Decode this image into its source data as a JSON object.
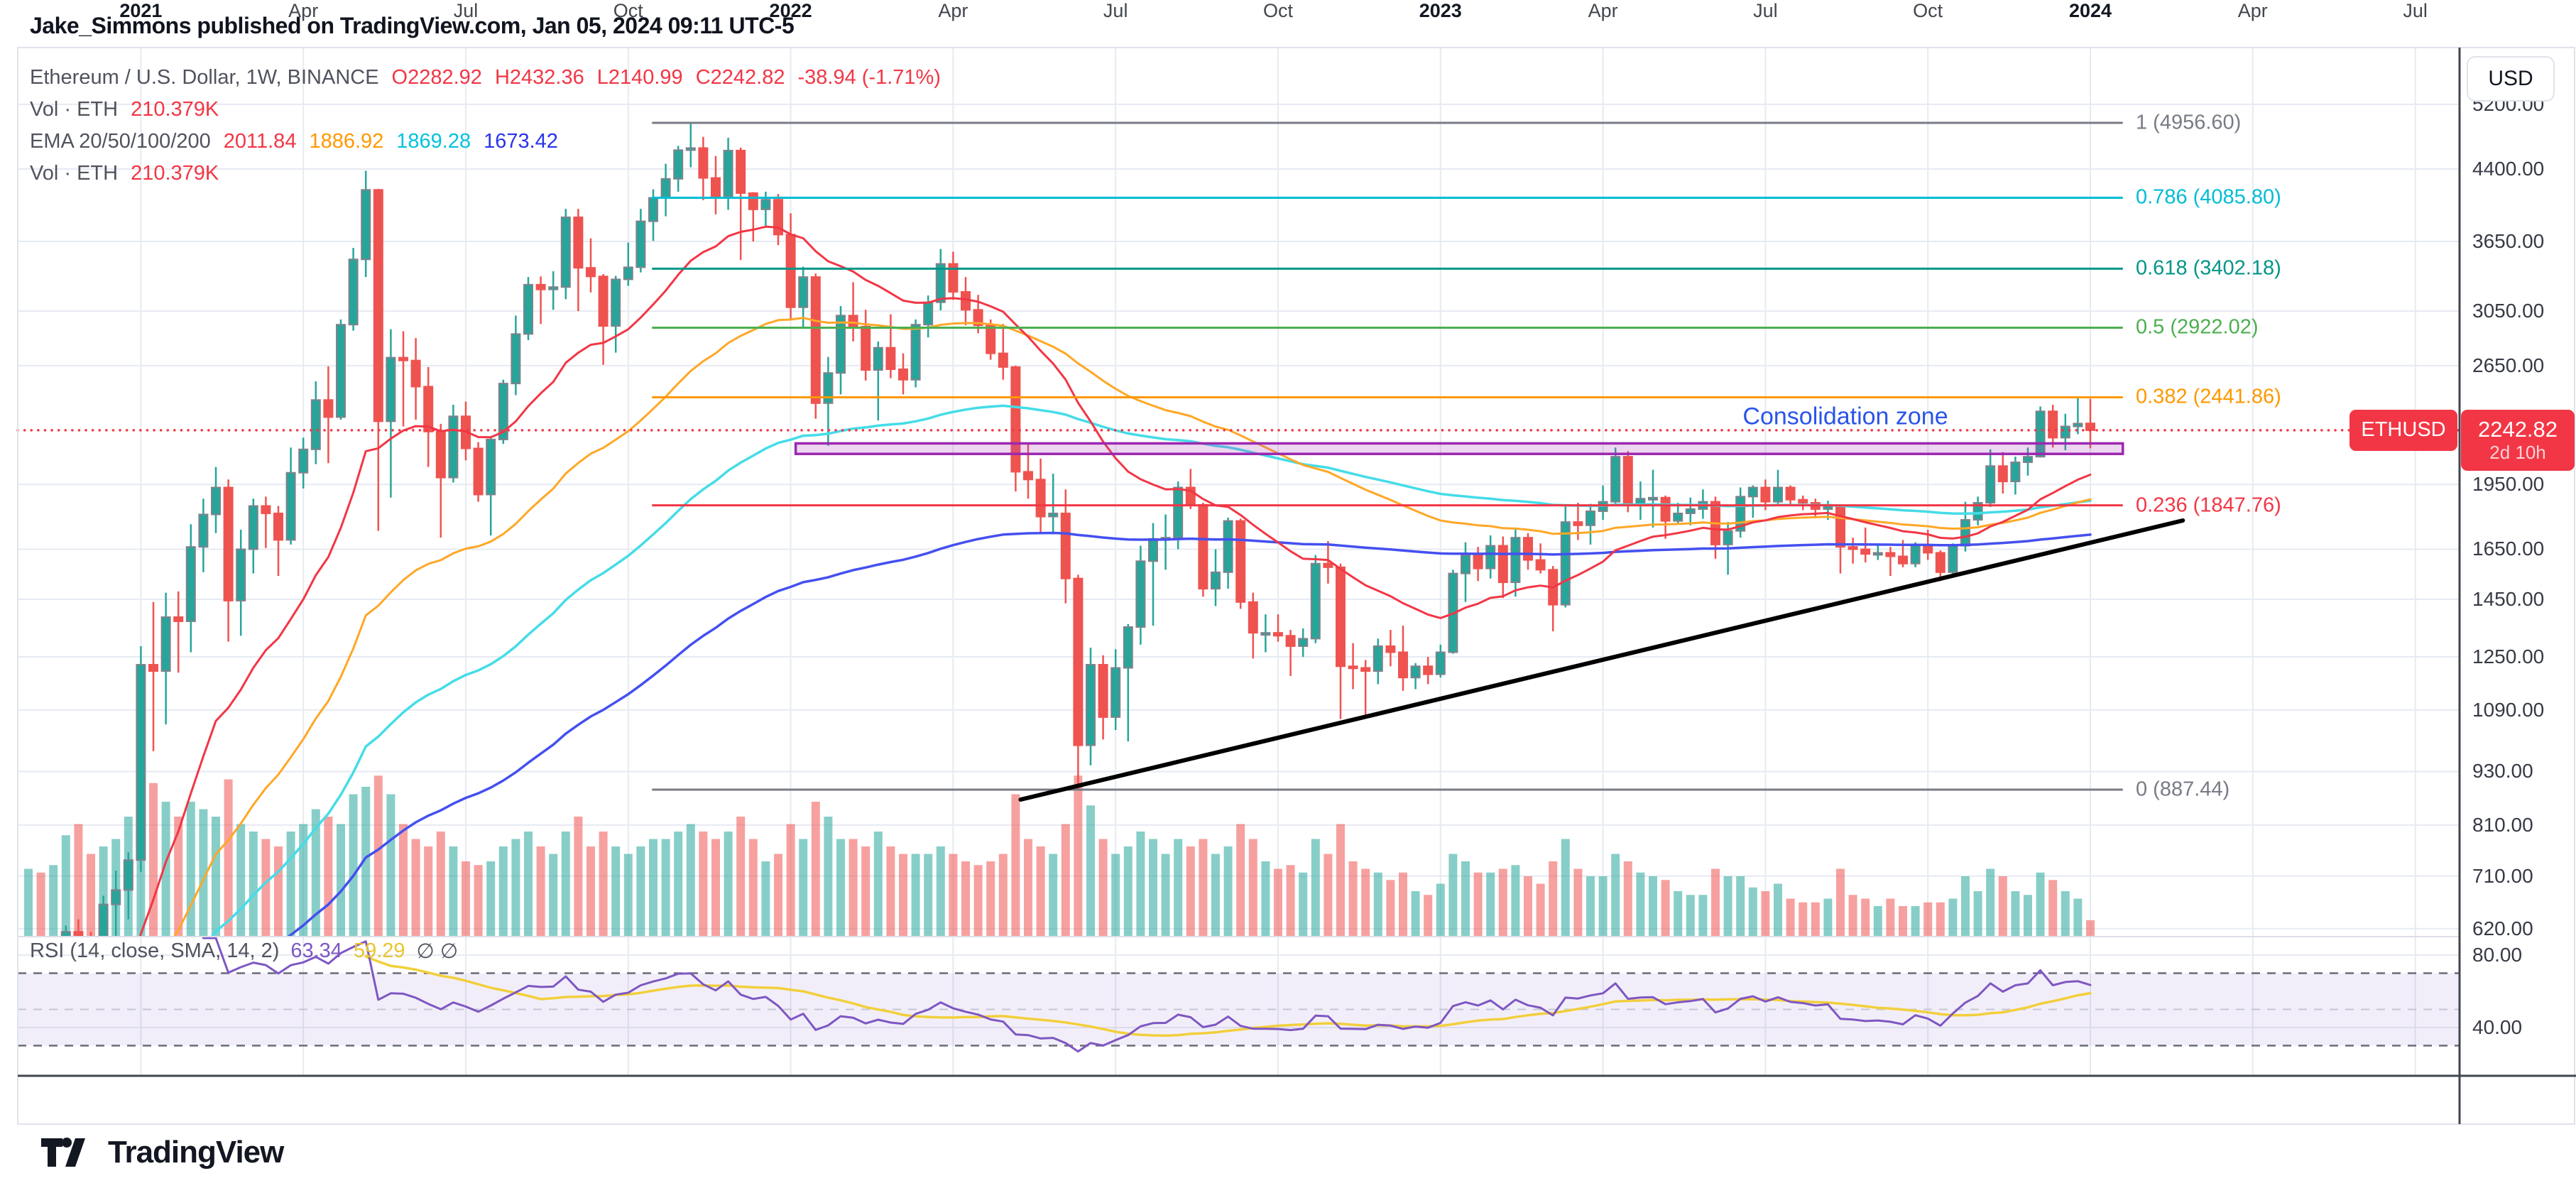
{
  "header": {
    "attribution": "Jake_Simmons published on TradingView.com, Jan 05, 2024 09:11 UTC-5"
  },
  "footer": {
    "brand": "TradingView"
  },
  "legend": {
    "symbol_row": {
      "title": "Ethereum / U.S. Dollar, 1W, BINANCE",
      "o": "O2282.92",
      "h": "H2432.36",
      "l": "L2140.99",
      "c": "C2242.82",
      "change": "-38.94 (-1.71%)"
    },
    "vol_row": {
      "label": "Vol · ETH",
      "value": "210.379K"
    },
    "ema_row": {
      "label": "EMA 20/50/100/200",
      "v20": "2011.84",
      "v50": "1886.92",
      "v100": "1869.28",
      "v200": "1673.42"
    }
  },
  "rsi_legend": {
    "title": "RSI (14, close, SMA, 14, 2)",
    "value": "63.34",
    "ma_value": "59.29",
    "empty": "∅  ∅"
  },
  "price_scale": {
    "title": "USD",
    "labels": [
      {
        "text": "5200.00",
        "value": 5200
      },
      {
        "text": "4400.00",
        "value": 4400
      },
      {
        "text": "3650.00",
        "value": 3650
      },
      {
        "text": "3050.00",
        "value": 3050
      },
      {
        "text": "2650.00",
        "value": 2650
      },
      {
        "text": "1950.00",
        "value": 1950
      },
      {
        "text": "1650.00",
        "value": 1650
      },
      {
        "text": "1450.00",
        "value": 1450
      },
      {
        "text": "1250.00",
        "value": 1250
      },
      {
        "text": "1090.00",
        "value": 1090
      },
      {
        "text": "930.00",
        "value": 930
      },
      {
        "text": "810.00",
        "value": 810
      },
      {
        "text": "710.00",
        "value": 710
      },
      {
        "text": "620.00",
        "value": 620
      }
    ],
    "rsi_labels": [
      {
        "text": "80.00",
        "value": 80
      },
      {
        "text": "40.00",
        "value": 40
      }
    ]
  },
  "time_axis": [
    {
      "text": "2021",
      "week": 9,
      "year": true
    },
    {
      "text": "Apr",
      "week": 22
    },
    {
      "text": "Jul",
      "week": 35
    },
    {
      "text": "Oct",
      "week": 48
    },
    {
      "text": "2022",
      "week": 61,
      "year": true
    },
    {
      "text": "Apr",
      "week": 74
    },
    {
      "text": "Jul",
      "week": 87
    },
    {
      "text": "Oct",
      "week": 100
    },
    {
      "text": "2023",
      "week": 113,
      "year": true
    },
    {
      "text": "Apr",
      "week": 126
    },
    {
      "text": "Jul",
      "week": 139
    },
    {
      "text": "Oct",
      "week": 152
    },
    {
      "text": "2024",
      "week": 165,
      "year": true
    },
    {
      "text": "Apr",
      "week": 178
    },
    {
      "text": "Jul",
      "week": 191
    }
  ],
  "price_tag": {
    "symbol": "ETHUSD",
    "price": "2242.82",
    "countdown": "2d 10h",
    "value": 2242.82
  },
  "annotations": {
    "consolidation": {
      "text": "Consolidation zone",
      "anchor_week": 145.4,
      "anchor_price": 2320
    },
    "consolidation_box": {
      "from_week": 61.4,
      "to_week": 167.6,
      "price_top": 2168,
      "price_bottom": 2110,
      "color": "#9c27b0",
      "fill": "rgba(171,71,188,0.22)"
    },
    "trendline": {
      "from": {
        "week": 79.4,
        "price": 865
      },
      "to": {
        "week": 172.4,
        "price": 1777
      },
      "color": "#000000",
      "width": 6
    }
  },
  "chart_data": {
    "type": "candlestick",
    "title": "Ethereum / U.S. Dollar, 1W, BINANCE",
    "symbol": "ETHUSD",
    "timeframe": "1W",
    "exchange": "BINANCE",
    "scale": "logarithmic",
    "ylabel": "USD",
    "ylim": [
      560,
      5400
    ],
    "grid": true,
    "current_bar": {
      "open": 2282.92,
      "high": 2432.36,
      "low": 2140.99,
      "close": 2242.82,
      "change": -38.94,
      "change_pct": -1.71,
      "volume": "210.379K"
    },
    "ema_current": {
      "ema20": 2011.84,
      "ema50": 1886.92,
      "ema100": 1869.28,
      "ema200": 1673.42
    },
    "rsi_current": {
      "rsi": 63.34,
      "rsi_ma": 59.29,
      "length": 14,
      "source": "close",
      "ma_type": "SMA",
      "ma_length": 14
    },
    "fib_levels": [
      {
        "text": "1 (4956.60)",
        "level": 1,
        "price": 4956.6,
        "color": "#787b86"
      },
      {
        "text": "0.786 (4085.80)",
        "level": 0.786,
        "price": 4085.8,
        "color": "#00bcd4"
      },
      {
        "text": "0.618 (3402.18)",
        "level": 0.618,
        "price": 3402.18,
        "color": "#009688"
      },
      {
        "text": "0.5 (2922.02)",
        "level": 0.5,
        "price": 2922.02,
        "color": "#4caf50"
      },
      {
        "text": "0.382 (2441.86)",
        "level": 0.382,
        "price": 2441.86,
        "color": "#ff9800"
      },
      {
        "text": "0.236 (1847.76)",
        "level": 0.236,
        "price": 1847.76,
        "color": "#f23645"
      },
      {
        "text": "0 (887.44)",
        "level": 0,
        "price": 887.44,
        "color": "#787b86"
      }
    ],
    "fib_span": {
      "from_week": 49.9,
      "to_week": 167.6
    },
    "candles_format": [
      "open",
      "high",
      "low",
      "close",
      "volume_K"
    ],
    "candles": [
      [
        395,
        470,
        376,
        458,
        900
      ],
      [
        458,
        490,
        428,
        449,
        850
      ],
      [
        449,
        510,
        440,
        505,
        950
      ],
      [
        505,
        625,
        480,
        615,
        1350
      ],
      [
        615,
        635,
        530,
        600,
        1500
      ],
      [
        600,
        615,
        530,
        555,
        1100
      ],
      [
        555,
        675,
        535,
        660,
        1200
      ],
      [
        660,
        720,
        585,
        685,
        1300
      ],
      [
        685,
        755,
        635,
        740,
        1600
      ],
      [
        740,
        1285,
        718,
        1225,
        2100
      ],
      [
        1225,
        1440,
        980,
        1205,
        2050
      ],
      [
        1205,
        1475,
        1050,
        1385,
        1800
      ],
      [
        1385,
        1480,
        1200,
        1370,
        1600
      ],
      [
        1370,
        1760,
        1265,
        1660,
        1800
      ],
      [
        1660,
        1880,
        1555,
        1805,
        1700
      ],
      [
        1805,
        2040,
        1720,
        1935,
        1600
      ],
      [
        1935,
        1975,
        1300,
        1445,
        2100
      ],
      [
        1445,
        1735,
        1320,
        1650,
        1500
      ],
      [
        1650,
        1880,
        1550,
        1845,
        1400
      ],
      [
        1845,
        1890,
        1655,
        1810,
        1300
      ],
      [
        1810,
        1845,
        1540,
        1690,
        1200
      ],
      [
        1690,
        2145,
        1670,
        2010,
        1400
      ],
      [
        2010,
        2200,
        1930,
        2135,
        1500
      ],
      [
        2135,
        2545,
        2055,
        2425,
        1700
      ],
      [
        2425,
        2645,
        2060,
        2320,
        1600
      ],
      [
        2320,
        2985,
        2305,
        2945,
        1500
      ],
      [
        2945,
        3590,
        2900,
        3485,
        1900
      ],
      [
        3485,
        4380,
        3330,
        4170,
        2000
      ],
      [
        4170,
        4180,
        1730,
        2295,
        2150
      ],
      [
        2295,
        2910,
        1885,
        2705,
        1900
      ],
      [
        2705,
        2895,
        2265,
        2685,
        1500
      ],
      [
        2685,
        2845,
        2305,
        2510,
        1300
      ],
      [
        2510,
        2640,
        2040,
        2235,
        1200
      ],
      [
        2235,
        2280,
        1700,
        1985,
        1400
      ],
      [
        1985,
        2395,
        1960,
        2325,
        1200
      ],
      [
        2325,
        2415,
        2075,
        2140,
        1000
      ],
      [
        2140,
        2175,
        1865,
        1900,
        950
      ],
      [
        1900,
        2205,
        1710,
        2190,
        1000
      ],
      [
        2190,
        2555,
        2165,
        2530,
        1200
      ],
      [
        2530,
        3015,
        2455,
        2875,
        1300
      ],
      [
        2875,
        3330,
        2830,
        3265,
        1400
      ],
      [
        3265,
        3335,
        2950,
        3225,
        1200
      ],
      [
        3225,
        3380,
        3060,
        3245,
        1100
      ],
      [
        3245,
        3970,
        3145,
        3885,
        1400
      ],
      [
        3885,
        3970,
        3050,
        3410,
        1600
      ],
      [
        3410,
        3680,
        3200,
        3335,
        1200
      ],
      [
        3335,
        3355,
        2655,
        2935,
        1400
      ],
      [
        2935,
        3340,
        2740,
        3310,
        1200
      ],
      [
        3310,
        3640,
        3255,
        3415,
        1100
      ],
      [
        3415,
        3970,
        3370,
        3845,
        1200
      ],
      [
        3845,
        4175,
        3655,
        4085,
        1300
      ],
      [
        4085,
        4460,
        3895,
        4290,
        1300
      ],
      [
        4290,
        4670,
        4150,
        4620,
        1400
      ],
      [
        4620,
        4957,
        4420,
        4645,
        1500
      ],
      [
        4645,
        4780,
        4060,
        4300,
        1400
      ],
      [
        4300,
        4550,
        3915,
        4100,
        1300
      ],
      [
        4100,
        4770,
        3960,
        4615,
        1400
      ],
      [
        4615,
        4650,
        3480,
        4135,
        1600
      ],
      [
        4135,
        4145,
        3650,
        3965,
        1300
      ],
      [
        3965,
        4150,
        3800,
        4065,
        1000
      ],
      [
        4065,
        4125,
        3615,
        3715,
        1100
      ],
      [
        3715,
        3925,
        2985,
        3080,
        1500
      ],
      [
        3080,
        3420,
        2925,
        3330,
        1300
      ],
      [
        3330,
        3360,
        2310,
        2405,
        1800
      ],
      [
        2405,
        2710,
        2155,
        2600,
        1600
      ],
      [
        2600,
        3090,
        2460,
        3015,
        1300
      ],
      [
        3015,
        3285,
        2820,
        2930,
        1300
      ],
      [
        2930,
        3060,
        2550,
        2620,
        1200
      ],
      [
        2620,
        2820,
        2300,
        2775,
        1400
      ],
      [
        2775,
        3025,
        2565,
        2625,
        1200
      ],
      [
        2625,
        2735,
        2460,
        2555,
        1100
      ],
      [
        2555,
        2985,
        2505,
        2945,
        1100
      ],
      [
        2945,
        3175,
        2850,
        3120,
        1100
      ],
      [
        3120,
        3580,
        3055,
        3445,
        1200
      ],
      [
        3445,
        3555,
        3140,
        3205,
        1100
      ],
      [
        3205,
        3330,
        2940,
        3060,
        1000
      ],
      [
        3060,
        3180,
        2880,
        2940,
        950
      ],
      [
        2940,
        2985,
        2690,
        2735,
        1000
      ],
      [
        2735,
        2950,
        2555,
        2640,
        1100
      ],
      [
        2640,
        2650,
        1915,
        2015,
        1900
      ],
      [
        2015,
        2165,
        1880,
        1975,
        1300
      ],
      [
        1975,
        2085,
        1720,
        1795,
        1200
      ],
      [
        1795,
        2005,
        1715,
        1810,
        1100
      ],
      [
        1810,
        1925,
        1435,
        1530,
        1500
      ],
      [
        1530,
        1545,
        887,
        995,
        2150
      ],
      [
        995,
        1280,
        945,
        1225,
        1750
      ],
      [
        1225,
        1255,
        1010,
        1070,
        1300
      ],
      [
        1070,
        1275,
        1035,
        1215,
        1100
      ],
      [
        1215,
        1360,
        1005,
        1350,
        1200
      ],
      [
        1350,
        1665,
        1290,
        1600,
        1400
      ],
      [
        1600,
        1765,
        1355,
        1695,
        1300
      ],
      [
        1695,
        1805,
        1565,
        1700,
        1100
      ],
      [
        1700,
        1965,
        1650,
        1935,
        1300
      ],
      [
        1935,
        2030,
        1830,
        1850,
        1200
      ],
      [
        1850,
        1860,
        1460,
        1490,
        1300
      ],
      [
        1490,
        1650,
        1425,
        1555,
        1100
      ],
      [
        1555,
        1790,
        1490,
        1775,
        1200
      ],
      [
        1775,
        1785,
        1415,
        1440,
        1500
      ],
      [
        1440,
        1475,
        1245,
        1330,
        1300
      ],
      [
        1330,
        1395,
        1265,
        1330,
        1000
      ],
      [
        1330,
        1395,
        1300,
        1320,
        900
      ],
      [
        1320,
        1340,
        1190,
        1285,
        950
      ],
      [
        1285,
        1345,
        1250,
        1310,
        850
      ],
      [
        1310,
        1625,
        1295,
        1590,
        1300
      ],
      [
        1590,
        1685,
        1510,
        1575,
        1100
      ],
      [
        1575,
        1590,
        1065,
        1220,
        1500
      ],
      [
        1220,
        1295,
        1150,
        1215,
        1000
      ],
      [
        1215,
        1240,
        1075,
        1205,
        900
      ],
      [
        1205,
        1310,
        1165,
        1285,
        850
      ],
      [
        1285,
        1340,
        1220,
        1265,
        750
      ],
      [
        1265,
        1355,
        1145,
        1185,
        850
      ],
      [
        1185,
        1230,
        1150,
        1220,
        600
      ],
      [
        1220,
        1250,
        1165,
        1195,
        550
      ],
      [
        1195,
        1290,
        1185,
        1265,
        700
      ],
      [
        1265,
        1565,
        1260,
        1550,
        1100
      ],
      [
        1550,
        1680,
        1440,
        1625,
        1000
      ],
      [
        1625,
        1660,
        1520,
        1570,
        850
      ],
      [
        1570,
        1710,
        1530,
        1665,
        850
      ],
      [
        1665,
        1705,
        1455,
        1515,
        900
      ],
      [
        1515,
        1745,
        1460,
        1700,
        950
      ],
      [
        1700,
        1720,
        1565,
        1605,
        800
      ],
      [
        1605,
        1675,
        1550,
        1565,
        700
      ],
      [
        1565,
        1580,
        1335,
        1430,
        1000
      ],
      [
        1430,
        1845,
        1420,
        1770,
        1300
      ],
      [
        1770,
        1860,
        1690,
        1755,
        900
      ],
      [
        1755,
        1855,
        1670,
        1820,
        800
      ],
      [
        1820,
        1945,
        1780,
        1865,
        800
      ],
      [
        1865,
        2145,
        1850,
        2095,
        1100
      ],
      [
        2095,
        2125,
        1815,
        1850,
        1000
      ],
      [
        1850,
        1965,
        1780,
        1880,
        850
      ],
      [
        1880,
        2025,
        1745,
        1885,
        800
      ],
      [
        1885,
        1895,
        1695,
        1775,
        750
      ],
      [
        1775,
        1860,
        1765,
        1810,
        600
      ],
      [
        1810,
        1885,
        1755,
        1830,
        550
      ],
      [
        1830,
        1925,
        1785,
        1865,
        550
      ],
      [
        1865,
        1890,
        1610,
        1670,
        900
      ],
      [
        1670,
        1770,
        1545,
        1730,
        800
      ],
      [
        1730,
        1935,
        1700,
        1890,
        800
      ],
      [
        1890,
        1945,
        1790,
        1935,
        650
      ],
      [
        1935,
        1975,
        1825,
        1865,
        600
      ],
      [
        1865,
        2025,
        1850,
        1935,
        700
      ],
      [
        1935,
        1945,
        1845,
        1875,
        500
      ],
      [
        1875,
        1895,
        1825,
        1860,
        450
      ],
      [
        1860,
        1880,
        1795,
        1830,
        450
      ],
      [
        1830,
        1870,
        1780,
        1845,
        500
      ],
      [
        1845,
        1850,
        1550,
        1660,
        900
      ],
      [
        1660,
        1700,
        1590,
        1650,
        550
      ],
      [
        1650,
        1745,
        1595,
        1630,
        500
      ],
      [
        1630,
        1665,
        1605,
        1635,
        400
      ],
      [
        1635,
        1660,
        1540,
        1620,
        500
      ],
      [
        1620,
        1690,
        1575,
        1590,
        400
      ],
      [
        1590,
        1680,
        1575,
        1670,
        400
      ],
      [
        1670,
        1735,
        1605,
        1635,
        450
      ],
      [
        1635,
        1645,
        1520,
        1555,
        450
      ],
      [
        1555,
        1675,
        1540,
        1665,
        500
      ],
      [
        1665,
        1865,
        1640,
        1780,
        800
      ],
      [
        1780,
        1890,
        1755,
        1860,
        600
      ],
      [
        1860,
        2135,
        1840,
        2045,
        900
      ],
      [
        2045,
        2120,
        1905,
        1965,
        800
      ],
      [
        1965,
        2095,
        1900,
        2065,
        600
      ],
      [
        2065,
        2145,
        1995,
        2095,
        550
      ],
      [
        2095,
        2385,
        2090,
        2355,
        850
      ],
      [
        2355,
        2395,
        2145,
        2200,
        750
      ],
      [
        2200,
        2340,
        2130,
        2265,
        600
      ],
      [
        2265,
        2445,
        2220,
        2282,
        500
      ],
      [
        2282.92,
        2432.36,
        2140.99,
        2242.82,
        210.379
      ]
    ]
  },
  "colors": {
    "up": "#26a69a",
    "up_border": "#7f828c",
    "down": "#ef5350",
    "vol_up": "rgba(38,166,154,0.55)",
    "vol_down": "rgba(239,83,80,0.55)",
    "ema20": "#f23645",
    "ema50": "#ffa726",
    "ema100": "#45dce8",
    "ema200": "#4450ef",
    "rsi": "#7e57c2",
    "rsi_ma": "#f2cf3c",
    "rsi_band": "rgba(126,87,194,0.10)",
    "accent_red": "#f23645",
    "grid": "#e6eaf2",
    "axis_line": "#42454f",
    "text_dark": "#131722",
    "text_gray": "#50535e"
  }
}
